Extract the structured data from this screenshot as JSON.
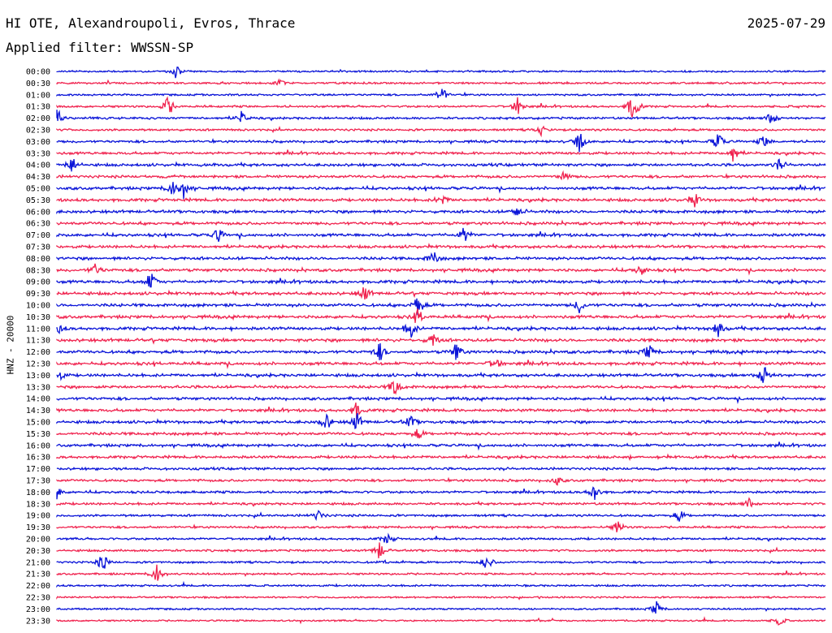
{
  "header": {
    "title": "HI OTE, Alexandroupoli, Evros, Thrace",
    "date": "2025-07-29",
    "filter_label": "Applied filter: WWSSN-SP"
  },
  "chart_data": {
    "type": "line",
    "ylabel": "HNZ - 20000",
    "colors": {
      "even_trace": "#0a14d8",
      "odd_trace": "#f0234f"
    },
    "rows": [
      {
        "label": "00:00",
        "activity": 0.35,
        "events": [
          [
            0.155,
            1.0
          ]
        ]
      },
      {
        "label": "00:30",
        "activity": 0.4,
        "events": [
          [
            0.29,
            0.5
          ]
        ]
      },
      {
        "label": "01:00",
        "activity": 0.4,
        "events": [
          [
            0.5,
            1.4
          ]
        ]
      },
      {
        "label": "01:30",
        "activity": 0.5,
        "events": [
          [
            0.145,
            1.7
          ],
          [
            0.6,
            1.4
          ],
          [
            0.75,
            2.8
          ]
        ]
      },
      {
        "label": "02:00",
        "activity": 0.6,
        "events": [
          [
            0.0,
            1.6
          ],
          [
            0.24,
            0.9
          ],
          [
            0.93,
            1.1
          ]
        ]
      },
      {
        "label": "02:30",
        "activity": 0.55,
        "events": [
          [
            0.63,
            0.7
          ]
        ]
      },
      {
        "label": "03:00",
        "activity": 0.7,
        "events": [
          [
            0.68,
            1.6
          ],
          [
            0.86,
            1.4
          ],
          [
            0.92,
            1.0
          ]
        ]
      },
      {
        "label": "03:30",
        "activity": 0.75,
        "events": [
          [
            0.88,
            1.4
          ]
        ]
      },
      {
        "label": "04:00",
        "activity": 0.85,
        "events": [
          [
            0.02,
            1.3
          ],
          [
            0.94,
            0.9
          ]
        ]
      },
      {
        "label": "04:30",
        "activity": 0.85,
        "events": [
          [
            0.66,
            0.8
          ]
        ]
      },
      {
        "label": "05:00",
        "activity": 0.95,
        "events": [
          [
            0.15,
            1.2
          ],
          [
            0.165,
            1.3
          ]
        ]
      },
      {
        "label": "05:30",
        "activity": 0.95,
        "events": [
          [
            0.5,
            1.0
          ],
          [
            0.83,
            1.0
          ]
        ]
      },
      {
        "label": "06:00",
        "activity": 0.95,
        "events": [
          [
            0.6,
            0.9
          ]
        ]
      },
      {
        "label": "06:30",
        "activity": 0.95,
        "events": []
      },
      {
        "label": "07:00",
        "activity": 0.95,
        "events": [
          [
            0.21,
            1.0
          ],
          [
            0.53,
            1.2
          ]
        ]
      },
      {
        "label": "07:30",
        "activity": 0.9,
        "events": []
      },
      {
        "label": "08:00",
        "activity": 0.95,
        "events": [
          [
            0.49,
            1.2
          ]
        ]
      },
      {
        "label": "08:30",
        "activity": 0.95,
        "events": [
          [
            0.05,
            0.9
          ],
          [
            0.76,
            0.9
          ]
        ]
      },
      {
        "label": "09:00",
        "activity": 1.0,
        "events": [
          [
            0.122,
            1.5
          ]
        ]
      },
      {
        "label": "09:30",
        "activity": 1.0,
        "events": [
          [
            0.4,
            1.3
          ]
        ]
      },
      {
        "label": "10:00",
        "activity": 1.0,
        "events": [
          [
            0.47,
            1.6
          ],
          [
            0.68,
            1.1
          ]
        ]
      },
      {
        "label": "10:30",
        "activity": 1.0,
        "events": [
          [
            0.47,
            1.2
          ]
        ]
      },
      {
        "label": "11:00",
        "activity": 1.0,
        "events": [
          [
            0.0,
            1.4
          ],
          [
            0.46,
            1.6
          ],
          [
            0.86,
            1.2
          ]
        ]
      },
      {
        "label": "11:30",
        "activity": 1.05,
        "events": [
          [
            0.49,
            1.1
          ]
        ]
      },
      {
        "label": "12:00",
        "activity": 1.0,
        "events": [
          [
            0.42,
            1.4
          ],
          [
            0.52,
            1.5
          ],
          [
            0.77,
            1.2
          ]
        ]
      },
      {
        "label": "12:30",
        "activity": 1.0,
        "events": [
          [
            0.57,
            1.0
          ]
        ]
      },
      {
        "label": "13:00",
        "activity": 0.95,
        "events": [
          [
            0.0,
            1.6
          ],
          [
            0.92,
            1.8
          ]
        ]
      },
      {
        "label": "13:30",
        "activity": 0.9,
        "events": [
          [
            0.44,
            1.6
          ]
        ]
      },
      {
        "label": "14:00",
        "activity": 0.9,
        "events": []
      },
      {
        "label": "14:30",
        "activity": 0.9,
        "events": [
          [
            0.39,
            1.2
          ]
        ]
      },
      {
        "label": "15:00",
        "activity": 0.9,
        "events": [
          [
            0.35,
            1.4
          ],
          [
            0.39,
            1.5
          ],
          [
            0.46,
            1.0
          ]
        ]
      },
      {
        "label": "15:30",
        "activity": 0.9,
        "events": [
          [
            0.47,
            0.8
          ]
        ]
      },
      {
        "label": "16:00",
        "activity": 0.85,
        "events": []
      },
      {
        "label": "16:30",
        "activity": 0.8,
        "events": []
      },
      {
        "label": "17:00",
        "activity": 0.7,
        "events": []
      },
      {
        "label": "17:30",
        "activity": 0.7,
        "events": [
          [
            0.65,
            0.7
          ]
        ]
      },
      {
        "label": "18:00",
        "activity": 0.65,
        "events": [
          [
            0.0,
            0.9
          ],
          [
            0.7,
            1.4
          ]
        ]
      },
      {
        "label": "18:30",
        "activity": 0.65,
        "events": [
          [
            0.9,
            0.8
          ]
        ]
      },
      {
        "label": "19:00",
        "activity": 0.6,
        "events": [
          [
            0.34,
            0.8
          ],
          [
            0.81,
            0.9
          ]
        ]
      },
      {
        "label": "19:30",
        "activity": 0.55,
        "events": [
          [
            0.73,
            1.0
          ]
        ]
      },
      {
        "label": "20:00",
        "activity": 0.55,
        "events": [
          [
            0.43,
            0.9
          ]
        ]
      },
      {
        "label": "20:30",
        "activity": 0.55,
        "events": [
          [
            0.42,
            1.4
          ]
        ]
      },
      {
        "label": "21:00",
        "activity": 0.5,
        "events": [
          [
            0.06,
            1.5
          ],
          [
            0.56,
            1.3
          ]
        ]
      },
      {
        "label": "21:30",
        "activity": 0.45,
        "events": [
          [
            0.13,
            1.6
          ]
        ]
      },
      {
        "label": "22:00",
        "activity": 0.4,
        "events": []
      },
      {
        "label": "22:30",
        "activity": 0.35,
        "events": []
      },
      {
        "label": "23:00",
        "activity": 0.35,
        "events": [
          [
            0.78,
            1.1
          ]
        ]
      },
      {
        "label": "23:30",
        "activity": 0.3,
        "events": [
          [
            0.94,
            0.8
          ]
        ]
      }
    ]
  }
}
